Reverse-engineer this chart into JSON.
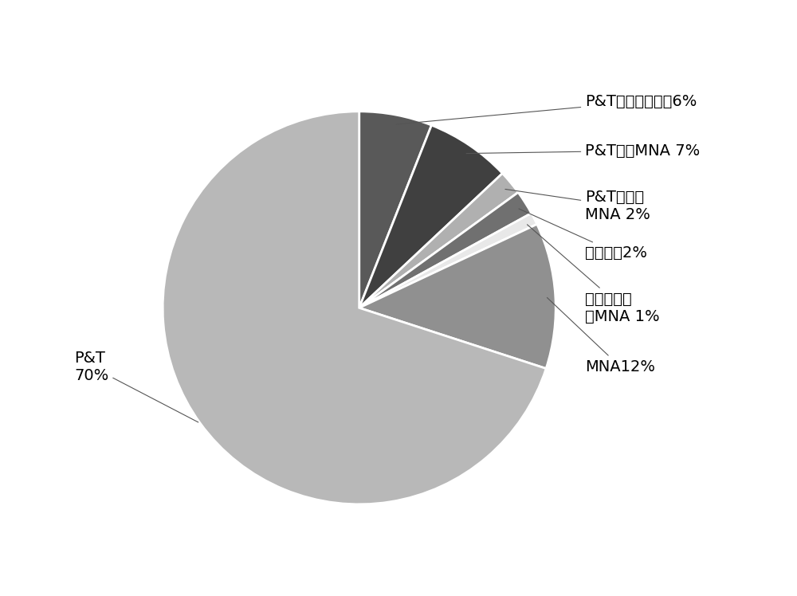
{
  "sizes": [
    6,
    7,
    2,
    2,
    1,
    12,
    70
  ],
  "colors": [
    "#595959",
    "#404040",
    "#b0b0b0",
    "#707070",
    "#e8e8e8",
    "#909090",
    "#b8b8b8"
  ],
  "label_texts": [
    "P&T联合原位处理6%",
    "P&T联合MNA 7%",
    "P&T原位和\nMNA 2%",
    "原位处理2%",
    "原位处理联\n合MNA 1%",
    "MNA12%",
    "P&T\n70%"
  ],
  "startangle": 90,
  "background_color": "#ffffff",
  "font_size": 14,
  "line_color": "#555555"
}
